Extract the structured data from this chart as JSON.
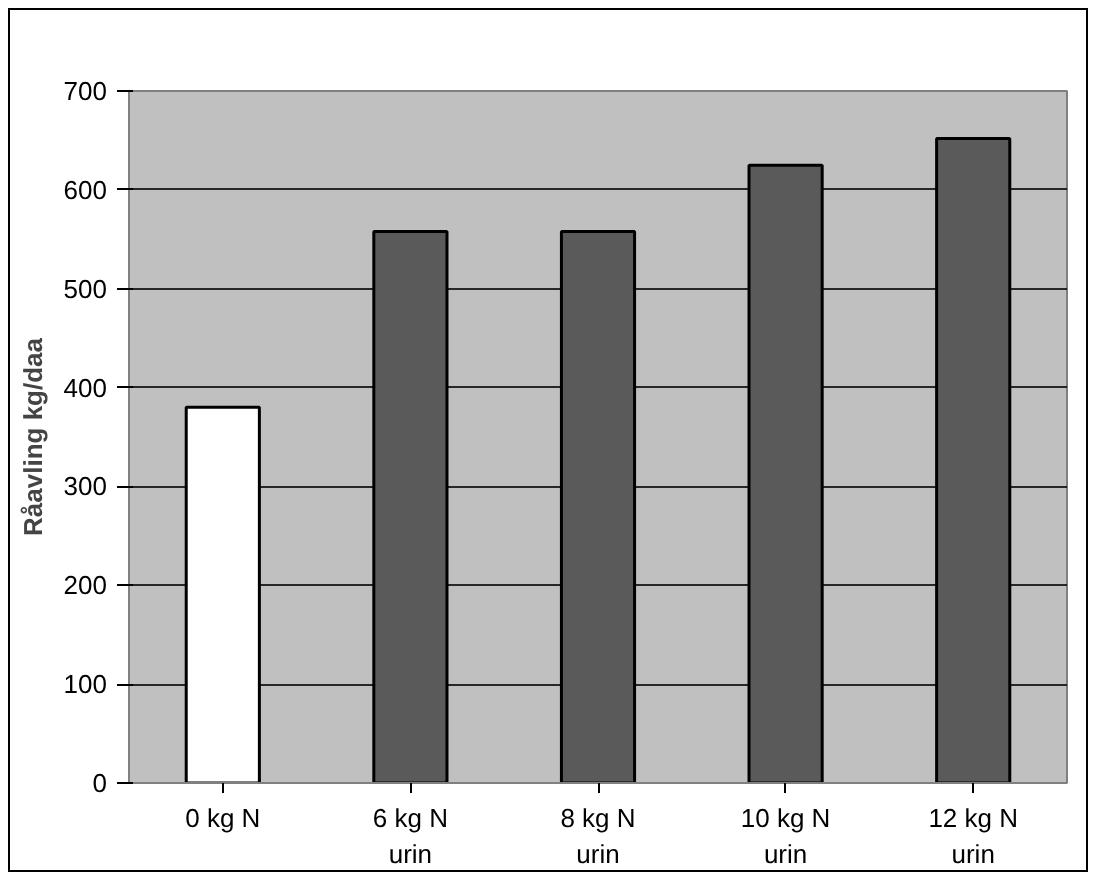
{
  "chart_data": {
    "type": "bar",
    "ylabel": "Råavling kg/daa",
    "categories": [
      "0 kg N",
      "6 kg N urin",
      "8 kg N urin",
      "10 kg N urin",
      "12 kg N urin"
    ],
    "values": [
      380,
      558,
      558,
      625,
      652
    ],
    "colors": [
      "#ffffff",
      "#5a5a5a",
      "#5a5a5a",
      "#5a5a5a",
      "#5a5a5a"
    ],
    "ylim": [
      0,
      700
    ],
    "yticks": [
      0,
      100,
      200,
      300,
      400,
      500,
      600,
      700
    ],
    "grid": "y"
  }
}
